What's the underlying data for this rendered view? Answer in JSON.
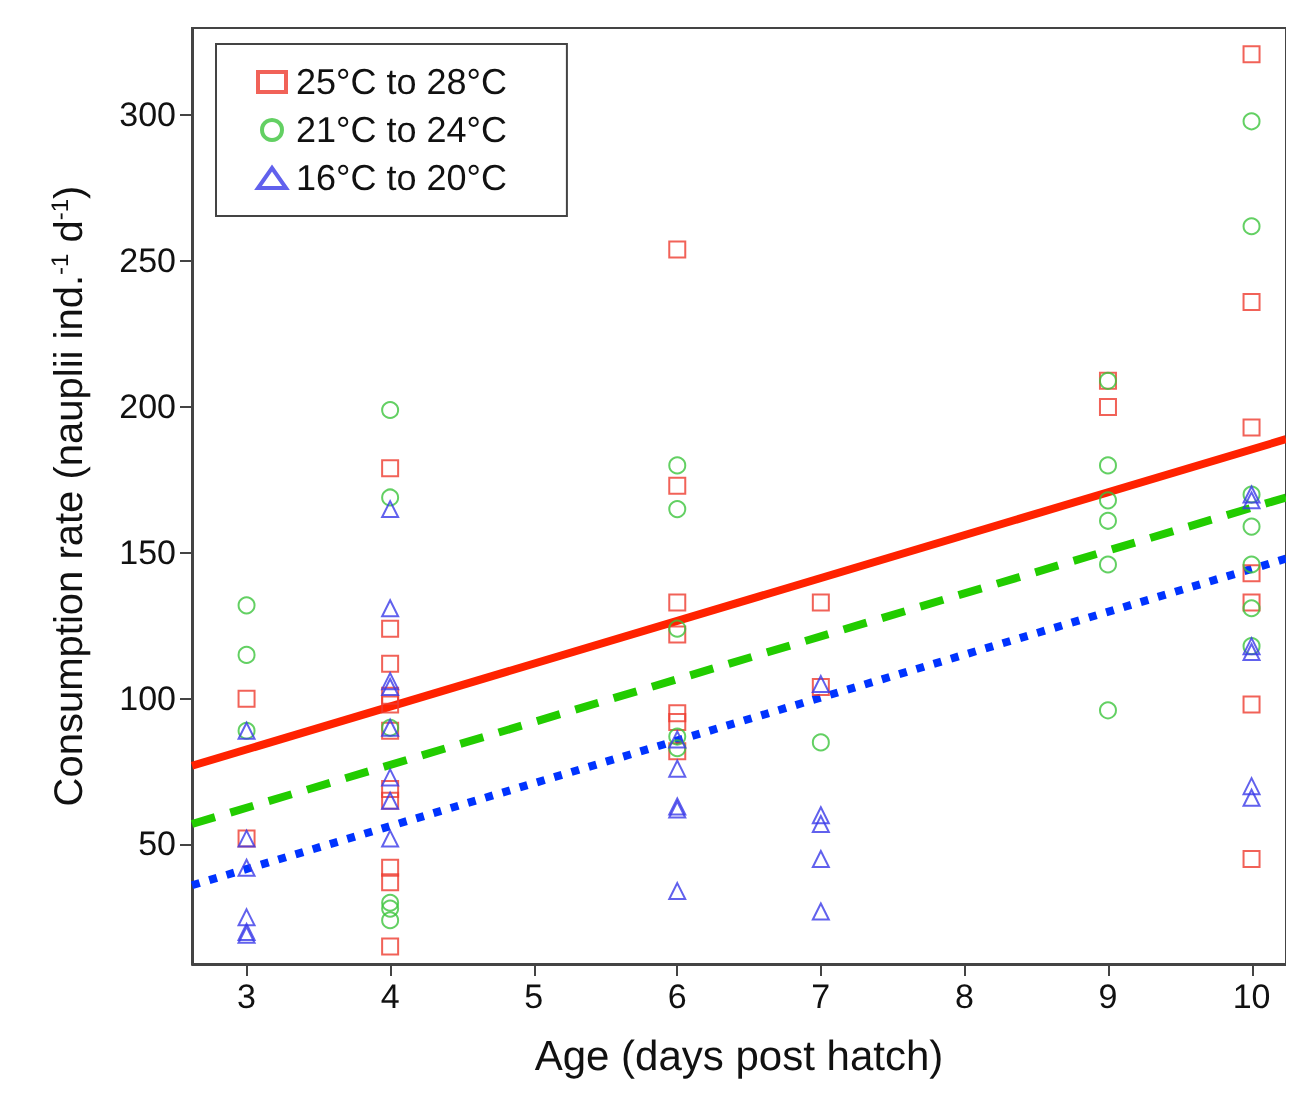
{
  "chart_data": {
    "type": "scatter",
    "xlabel": "Age (days post hatch)",
    "ylabel": "Consumption rate (nauplii ind.$^{-1}$ d$^{-1}$)",
    "xlim": [
      2.62,
      10.24
    ],
    "ylim": [
      9,
      330
    ],
    "xticks": [
      3,
      4,
      5,
      6,
      7,
      8,
      9,
      10
    ],
    "yticks": [
      50,
      100,
      150,
      200,
      250,
      300
    ],
    "grid": false,
    "legend": "top left",
    "series": [
      {
        "name": "25°C to 28°C",
        "color": "#ee3b2e",
        "marker": "square",
        "x": [
          3,
          3,
          4,
          4,
          4,
          4,
          4,
          4,
          4,
          4,
          4,
          4,
          4,
          6,
          6,
          6,
          6,
          6,
          6,
          6,
          7,
          7,
          9,
          9,
          10,
          10,
          10,
          10,
          10,
          10,
          10
        ],
        "values": [
          100,
          52,
          179,
          124,
          112,
          101,
          98,
          89,
          69,
          65,
          42,
          37,
          15,
          254,
          173,
          133,
          122,
          95,
          92,
          82,
          133,
          104,
          209,
          200,
          321,
          236,
          193,
          143,
          133,
          98,
          45
        ]
      },
      {
        "name": "21°C to 24°C",
        "color": "#3cc43c",
        "marker": "circle",
        "x": [
          3,
          3,
          3,
          4,
          4,
          4,
          4,
          4,
          4,
          6,
          6,
          6,
          6,
          6,
          7,
          9,
          9,
          9,
          9,
          9,
          9,
          10,
          10,
          10,
          10,
          10,
          10,
          10
        ],
        "values": [
          132,
          115,
          89,
          199,
          169,
          90,
          30,
          28,
          24,
          180,
          165,
          124,
          87,
          83,
          85,
          209,
          180,
          168,
          161,
          146,
          96,
          298,
          262,
          170,
          159,
          146,
          131,
          118
        ]
      },
      {
        "name": "16°C to 20°C",
        "color": "#3a3ae8",
        "marker": "triangle",
        "x": [
          3,
          3,
          3,
          3,
          3,
          3,
          4,
          4,
          4,
          4,
          4,
          4,
          4,
          4,
          6,
          6,
          6,
          6,
          6,
          7,
          7,
          7,
          7,
          7,
          10,
          10,
          10,
          10,
          10,
          10
        ],
        "values": [
          89,
          52,
          42,
          25,
          20,
          19,
          165,
          131,
          106,
          104,
          90,
          73,
          65,
          52,
          86,
          76,
          63,
          62,
          34,
          105,
          60,
          57,
          45,
          27,
          170,
          168,
          118,
          116,
          70,
          66
        ]
      },
      {
        "type": "line",
        "color": "#ff2200",
        "line_style": "solid",
        "x": [
          2.62,
          10.24
        ],
        "values": [
          77,
          189
        ]
      },
      {
        "type": "line",
        "color": "#22cc00",
        "line_style": "dashed",
        "x": [
          2.62,
          10.24
        ],
        "values": [
          57,
          169
        ]
      },
      {
        "type": "line",
        "color": "#0033ff",
        "line_style": "dotted",
        "x": [
          2.62,
          10.24
        ],
        "values": [
          36,
          148
        ]
      }
    ]
  }
}
